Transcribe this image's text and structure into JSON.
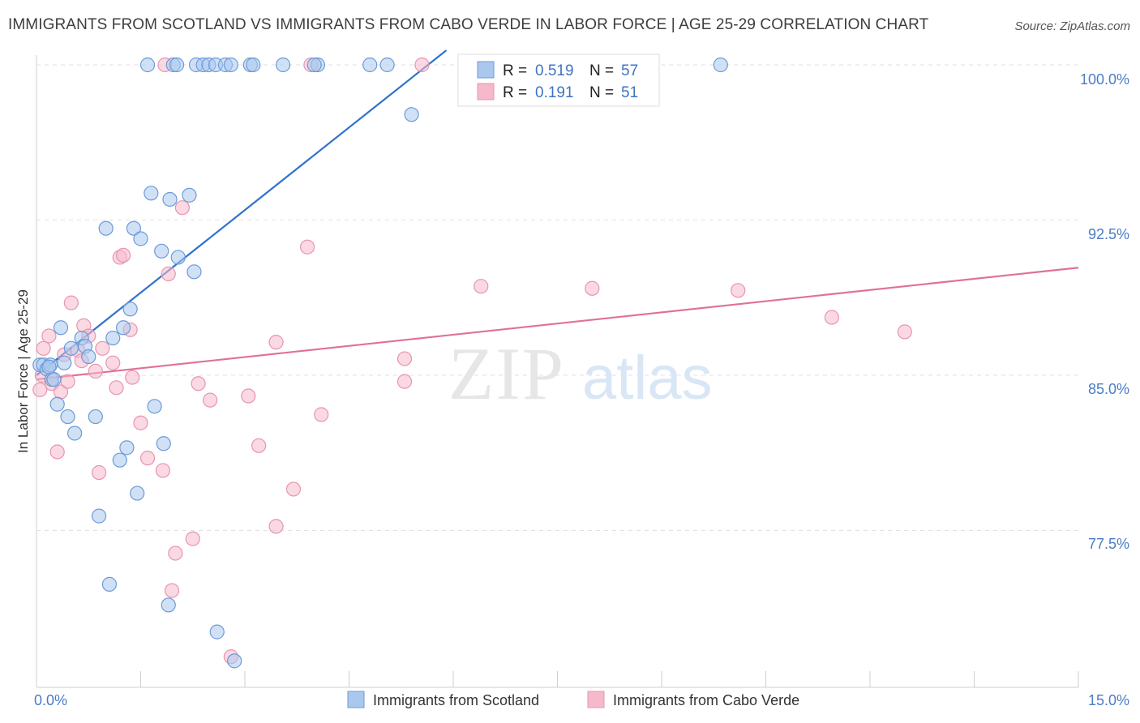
{
  "title": "IMMIGRANTS FROM SCOTLAND VS IMMIGRANTS FROM CABO VERDE IN LABOR FORCE | AGE 25-29 CORRELATION CHART",
  "source": "Source: ZipAtlas.com",
  "watermark": {
    "zip": "ZIP",
    "atlas": "atlas"
  },
  "colors": {
    "blue_fill": "#aac8ee",
    "blue_stroke": "#6c9ad8",
    "blue_line": "#2f72cf",
    "pink_fill": "#f6b9cb",
    "pink_stroke": "#e894b0",
    "pink_line": "#e07099",
    "tick_text": "#4a7cc7",
    "grid": "#e2e2e2"
  },
  "legend": {
    "r_label": "R =",
    "n_label": "N =",
    "series": [
      {
        "r": "0.519",
        "n": "57"
      },
      {
        "r": "0.191",
        "n": "51"
      }
    ]
  },
  "chart_data": {
    "type": "scatter",
    "xlabel": "",
    "ylabel": "In Labor Force | Age 25-29",
    "xlim": [
      0,
      15
    ],
    "ylim": [
      71.0,
      100.7
    ],
    "x_tick_labels": {
      "min": "0.0%",
      "max": "15.0%"
    },
    "y_ticks": [
      {
        "value": 100.0,
        "label": "100.0%"
      },
      {
        "value": 92.5,
        "label": "92.5%"
      },
      {
        "value": 85.0,
        "label": "85.0%"
      },
      {
        "value": 77.5,
        "label": "77.5%"
      }
    ],
    "series": [
      {
        "name": "Immigrants from Scotland",
        "color": "blue",
        "trend": {
          "x": [
            0.0,
            5.9
          ],
          "y": [
            85.0,
            100.7
          ]
        },
        "points": [
          [
            0.05,
            85.5
          ],
          [
            0.1,
            85.5
          ],
          [
            0.15,
            85.3
          ],
          [
            0.2,
            85.5
          ],
          [
            0.22,
            84.8
          ],
          [
            0.25,
            84.8
          ],
          [
            0.3,
            83.6
          ],
          [
            0.35,
            87.3
          ],
          [
            0.4,
            85.6
          ],
          [
            0.45,
            83.0
          ],
          [
            0.5,
            86.3
          ],
          [
            0.55,
            82.2
          ],
          [
            0.65,
            86.8
          ],
          [
            0.7,
            86.4
          ],
          [
            0.75,
            85.9
          ],
          [
            0.85,
            83.0
          ],
          [
            0.9,
            78.2
          ],
          [
            1.0,
            92.1
          ],
          [
            1.05,
            74.9
          ],
          [
            1.1,
            86.8
          ],
          [
            1.2,
            80.9
          ],
          [
            1.25,
            87.3
          ],
          [
            1.3,
            81.5
          ],
          [
            1.35,
            88.2
          ],
          [
            1.4,
            92.1
          ],
          [
            1.45,
            79.3
          ],
          [
            1.5,
            91.6
          ],
          [
            1.6,
            100.0
          ],
          [
            1.65,
            93.8
          ],
          [
            1.7,
            83.5
          ],
          [
            1.8,
            91.0
          ],
          [
            1.83,
            81.7
          ],
          [
            1.9,
            73.9
          ],
          [
            1.92,
            93.5
          ],
          [
            1.97,
            100.0
          ],
          [
            2.02,
            100.0
          ],
          [
            2.04,
            90.7
          ],
          [
            2.2,
            93.7
          ],
          [
            2.27,
            90.0
          ],
          [
            2.3,
            100.0
          ],
          [
            2.4,
            100.0
          ],
          [
            2.48,
            100.0
          ],
          [
            2.58,
            100.0
          ],
          [
            2.6,
            72.6
          ],
          [
            2.72,
            100.0
          ],
          [
            2.8,
            100.0
          ],
          [
            2.85,
            71.2
          ],
          [
            3.08,
            100.0
          ],
          [
            3.12,
            100.0
          ],
          [
            3.55,
            100.0
          ],
          [
            4.05,
            100.0
          ],
          [
            4.0,
            100.0
          ],
          [
            4.8,
            100.0
          ],
          [
            5.05,
            100.0
          ],
          [
            5.4,
            97.6
          ],
          [
            0.18,
            85.4
          ],
          [
            9.85,
            100.0
          ]
        ]
      },
      {
        "name": "Immigrants from Cabo Verde",
        "color": "pink",
        "trend": {
          "x": [
            0.0,
            15.0
          ],
          "y": [
            84.8,
            90.2
          ]
        },
        "points": [
          [
            0.05,
            84.3
          ],
          [
            0.1,
            86.3
          ],
          [
            0.18,
            86.9
          ],
          [
            0.22,
            84.6
          ],
          [
            0.3,
            81.3
          ],
          [
            0.35,
            84.2
          ],
          [
            0.4,
            86.0
          ],
          [
            0.45,
            84.7
          ],
          [
            0.5,
            88.5
          ],
          [
            0.6,
            86.2
          ],
          [
            0.65,
            85.7
          ],
          [
            0.68,
            87.4
          ],
          [
            0.75,
            86.9
          ],
          [
            0.85,
            85.2
          ],
          [
            0.9,
            80.3
          ],
          [
            0.95,
            86.3
          ],
          [
            1.1,
            85.6
          ],
          [
            1.15,
            84.4
          ],
          [
            1.2,
            90.7
          ],
          [
            1.25,
            90.8
          ],
          [
            1.35,
            87.2
          ],
          [
            1.38,
            84.9
          ],
          [
            1.5,
            82.7
          ],
          [
            1.6,
            81.0
          ],
          [
            1.82,
            80.4
          ],
          [
            1.9,
            89.9
          ],
          [
            1.95,
            74.6
          ],
          [
            2.0,
            76.4
          ],
          [
            2.1,
            93.1
          ],
          [
            2.25,
            77.1
          ],
          [
            2.33,
            84.6
          ],
          [
            2.5,
            83.8
          ],
          [
            2.8,
            71.4
          ],
          [
            3.05,
            84.0
          ],
          [
            3.2,
            81.6
          ],
          [
            3.45,
            86.6
          ],
          [
            3.45,
            77.7
          ],
          [
            3.7,
            79.5
          ],
          [
            3.9,
            91.2
          ],
          [
            3.95,
            100.0
          ],
          [
            4.1,
            83.1
          ],
          [
            5.3,
            85.8
          ],
          [
            5.3,
            84.7
          ],
          [
            5.55,
            100.0
          ],
          [
            6.4,
            89.3
          ],
          [
            8.0,
            89.2
          ],
          [
            10.1,
            89.1
          ],
          [
            11.45,
            87.8
          ],
          [
            12.5,
            87.1
          ],
          [
            1.85,
            100.0
          ],
          [
            0.08,
            85.0
          ]
        ]
      }
    ]
  }
}
